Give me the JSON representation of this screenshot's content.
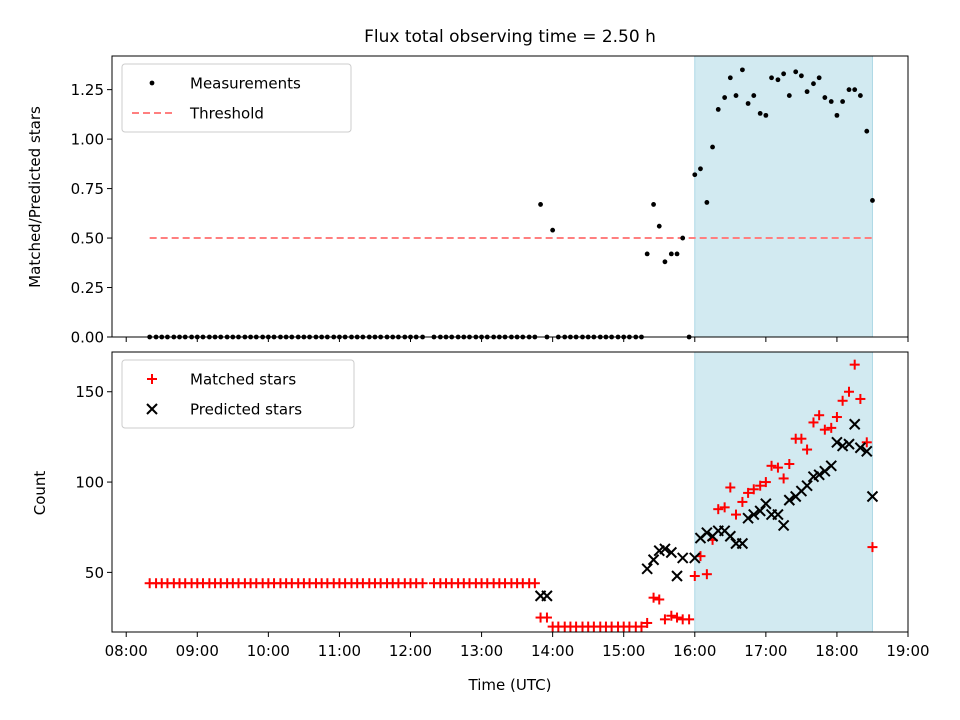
{
  "chart_data": [
    {
      "type": "scatter",
      "title": "Flux total observing time = 2.50 h",
      "xlabel": "",
      "ylabel": "Matched/Predicted stars",
      "xlim": [
        7.8,
        19.0
      ],
      "ylim": [
        0.0,
        1.42
      ],
      "yticks": [
        0.0,
        0.25,
        0.5,
        0.75,
        1.0,
        1.25
      ],
      "ytick_labels": [
        "0.00",
        "0.25",
        "0.50",
        "0.75",
        "1.00",
        "1.25"
      ],
      "shaded_span": [
        16.0,
        18.5
      ],
      "shaded_color": "#add8e6",
      "threshold": {
        "y": 0.5,
        "x_range": [
          8.33,
          18.5
        ],
        "color": "#ff7f7f"
      },
      "legend": {
        "location": "upper-left",
        "entries": [
          "Measurements",
          "Threshold"
        ]
      },
      "series": [
        {
          "name": "Measurements",
          "marker": "dot",
          "color": "#000000",
          "x": [
            8.33,
            8.42,
            8.5,
            8.58,
            8.67,
            8.75,
            8.83,
            8.92,
            9.0,
            9.08,
            9.17,
            9.25,
            9.33,
            9.42,
            9.5,
            9.58,
            9.67,
            9.75,
            9.83,
            9.92,
            10.0,
            10.08,
            10.17,
            10.25,
            10.33,
            10.42,
            10.5,
            10.58,
            10.67,
            10.75,
            10.83,
            10.92,
            11.0,
            11.08,
            11.17,
            11.25,
            11.33,
            11.42,
            11.5,
            11.58,
            11.67,
            11.75,
            11.83,
            11.92,
            12.0,
            12.08,
            12.17,
            12.33,
            12.42,
            12.5,
            12.58,
            12.67,
            12.75,
            12.83,
            12.92,
            13.0,
            13.08,
            13.17,
            13.25,
            13.33,
            13.42,
            13.5,
            13.58,
            13.67,
            13.75,
            13.83,
            13.92,
            14.0,
            14.08,
            14.17,
            14.25,
            14.33,
            14.42,
            14.5,
            14.58,
            14.67,
            14.75,
            14.83,
            14.92,
            15.0,
            15.08,
            15.17,
            15.25,
            15.33,
            15.42,
            15.5,
            15.58,
            15.67,
            15.75,
            15.83,
            15.92,
            16.0,
            16.08,
            16.17,
            16.25,
            16.33,
            16.42,
            16.5,
            16.58,
            16.67,
            16.75,
            16.83,
            16.92,
            17.0,
            17.08,
            17.17,
            17.25,
            17.33,
            17.42,
            17.5,
            17.58,
            17.67,
            17.75,
            17.83,
            17.92,
            18.0,
            18.08,
            18.17,
            18.25,
            18.33,
            18.42,
            18.5
          ],
          "y": [
            0.0,
            0.0,
            0.0,
            0.0,
            0.0,
            0.0,
            0.0,
            0.0,
            0.0,
            0.0,
            0.0,
            0.0,
            0.0,
            0.0,
            0.0,
            0.0,
            0.0,
            0.0,
            0.0,
            0.0,
            0.0,
            0.0,
            0.0,
            0.0,
            0.0,
            0.0,
            0.0,
            0.0,
            0.0,
            0.0,
            0.0,
            0.0,
            0.0,
            0.0,
            0.0,
            0.0,
            0.0,
            0.0,
            0.0,
            0.0,
            0.0,
            0.0,
            0.0,
            0.0,
            0.0,
            0.0,
            0.0,
            0.0,
            0.0,
            0.0,
            0.0,
            0.0,
            0.0,
            0.0,
            0.0,
            0.0,
            0.0,
            0.0,
            0.0,
            0.0,
            0.0,
            0.0,
            0.0,
            0.0,
            0.0,
            0.67,
            0.0,
            0.54,
            0.0,
            0.0,
            0.0,
            0.0,
            0.0,
            0.0,
            0.0,
            0.0,
            0.0,
            0.0,
            0.0,
            0.0,
            0.0,
            0.0,
            0.0,
            0.42,
            0.67,
            0.56,
            0.38,
            0.42,
            0.42,
            0.5,
            0.0,
            0.82,
            0.85,
            0.68,
            0.96,
            1.15,
            1.21,
            1.31,
            1.22,
            1.35,
            1.18,
            1.22,
            1.13,
            1.12,
            1.31,
            1.3,
            1.33,
            1.22,
            1.34,
            1.32,
            1.24,
            1.28,
            1.31,
            1.21,
            1.19,
            1.12,
            1.19,
            1.25,
            1.25,
            1.22,
            1.04,
            0.69
          ]
        }
      ]
    },
    {
      "type": "scatter",
      "title": "",
      "xlabel": "Time (UTC)",
      "ylabel": "Count",
      "xlim": [
        7.8,
        19.0
      ],
      "ylim": [
        17,
        172
      ],
      "yticks": [
        50,
        100,
        150
      ],
      "ytick_labels": [
        "50",
        "100",
        "150"
      ],
      "xticks": [
        8,
        9,
        10,
        11,
        12,
        13,
        14,
        15,
        16,
        17,
        18,
        19
      ],
      "xtick_labels": [
        "08:00",
        "09:00",
        "10:00",
        "11:00",
        "12:00",
        "13:00",
        "14:00",
        "15:00",
        "16:00",
        "17:00",
        "18:00",
        "19:00"
      ],
      "shaded_span": [
        16.0,
        18.5
      ],
      "shaded_color": "#add8e6",
      "legend": {
        "location": "upper-left",
        "entries": [
          "Matched stars",
          "Predicted stars"
        ]
      },
      "series": [
        {
          "name": "Matched stars",
          "marker": "plus",
          "color": "#ff0000",
          "x": [
            8.33,
            8.42,
            8.5,
            8.58,
            8.67,
            8.75,
            8.83,
            8.92,
            9.0,
            9.08,
            9.17,
            9.25,
            9.33,
            9.42,
            9.5,
            9.58,
            9.67,
            9.75,
            9.83,
            9.92,
            10.0,
            10.08,
            10.17,
            10.25,
            10.33,
            10.42,
            10.5,
            10.58,
            10.67,
            10.75,
            10.83,
            10.92,
            11.0,
            11.08,
            11.17,
            11.25,
            11.33,
            11.42,
            11.5,
            11.58,
            11.67,
            11.75,
            11.83,
            11.92,
            12.0,
            12.08,
            12.17,
            12.33,
            12.42,
            12.5,
            12.58,
            12.67,
            12.75,
            12.83,
            12.92,
            13.0,
            13.08,
            13.17,
            13.25,
            13.33,
            13.42,
            13.5,
            13.58,
            13.67,
            13.75,
            13.83,
            13.92,
            14.0,
            14.08,
            14.17,
            14.25,
            14.33,
            14.42,
            14.5,
            14.58,
            14.67,
            14.75,
            14.83,
            14.92,
            15.0,
            15.08,
            15.17,
            15.25,
            15.33,
            15.42,
            15.5,
            15.58,
            15.67,
            15.75,
            15.83,
            15.92,
            16.0,
            16.08,
            16.17,
            16.25,
            16.33,
            16.42,
            16.5,
            16.58,
            16.67,
            16.75,
            16.83,
            16.92,
            17.0,
            17.08,
            17.17,
            17.25,
            17.33,
            17.42,
            17.5,
            17.58,
            17.67,
            17.75,
            17.83,
            17.92,
            18.0,
            18.08,
            18.17,
            18.25,
            18.33,
            18.42,
            18.5
          ],
          "y": [
            44,
            44,
            44,
            44,
            44,
            44,
            44,
            44,
            44,
            44,
            44,
            44,
            44,
            44,
            44,
            44,
            44,
            44,
            44,
            44,
            44,
            44,
            44,
            44,
            44,
            44,
            44,
            44,
            44,
            44,
            44,
            44,
            44,
            44,
            44,
            44,
            44,
            44,
            44,
            44,
            44,
            44,
            44,
            44,
            44,
            44,
            44,
            44,
            44,
            44,
            44,
            44,
            44,
            44,
            44,
            44,
            44,
            44,
            44,
            44,
            44,
            44,
            44,
            44,
            44,
            25,
            25,
            20,
            20,
            20,
            20,
            20,
            20,
            20,
            20,
            20,
            20,
            20,
            20,
            20,
            20,
            20,
            20,
            22,
            36,
            35,
            24,
            26,
            25,
            24,
            24,
            48,
            59,
            49,
            68,
            85,
            86,
            97,
            82,
            89,
            94,
            96,
            98,
            100,
            109,
            108,
            102,
            110,
            124,
            124,
            118,
            133,
            137,
            129,
            130,
            136,
            145,
            150,
            165,
            146,
            122,
            64
          ]
        },
        {
          "name": "Predicted stars",
          "marker": "x",
          "color": "#000000",
          "x": [
            13.83,
            13.92,
            15.33,
            15.42,
            15.5,
            15.58,
            15.67,
            15.75,
            15.83,
            16.0,
            16.08,
            16.17,
            16.25,
            16.33,
            16.42,
            16.5,
            16.58,
            16.67,
            16.75,
            16.83,
            16.92,
            17.0,
            17.08,
            17.17,
            17.25,
            17.33,
            17.42,
            17.5,
            17.58,
            17.67,
            17.75,
            17.83,
            17.92,
            18.0,
            18.08,
            18.17,
            18.25,
            18.33,
            18.42,
            18.5
          ],
          "y": [
            37,
            37,
            52,
            57,
            62,
            63,
            61,
            48,
            58,
            58,
            69,
            72,
            70,
            73,
            73,
            70,
            66,
            66,
            80,
            82,
            84,
            88,
            82,
            82,
            76,
            90,
            92,
            95,
            98,
            103,
            104,
            106,
            109,
            122,
            120,
            121,
            132,
            119,
            117,
            92
          ]
        }
      ]
    }
  ]
}
